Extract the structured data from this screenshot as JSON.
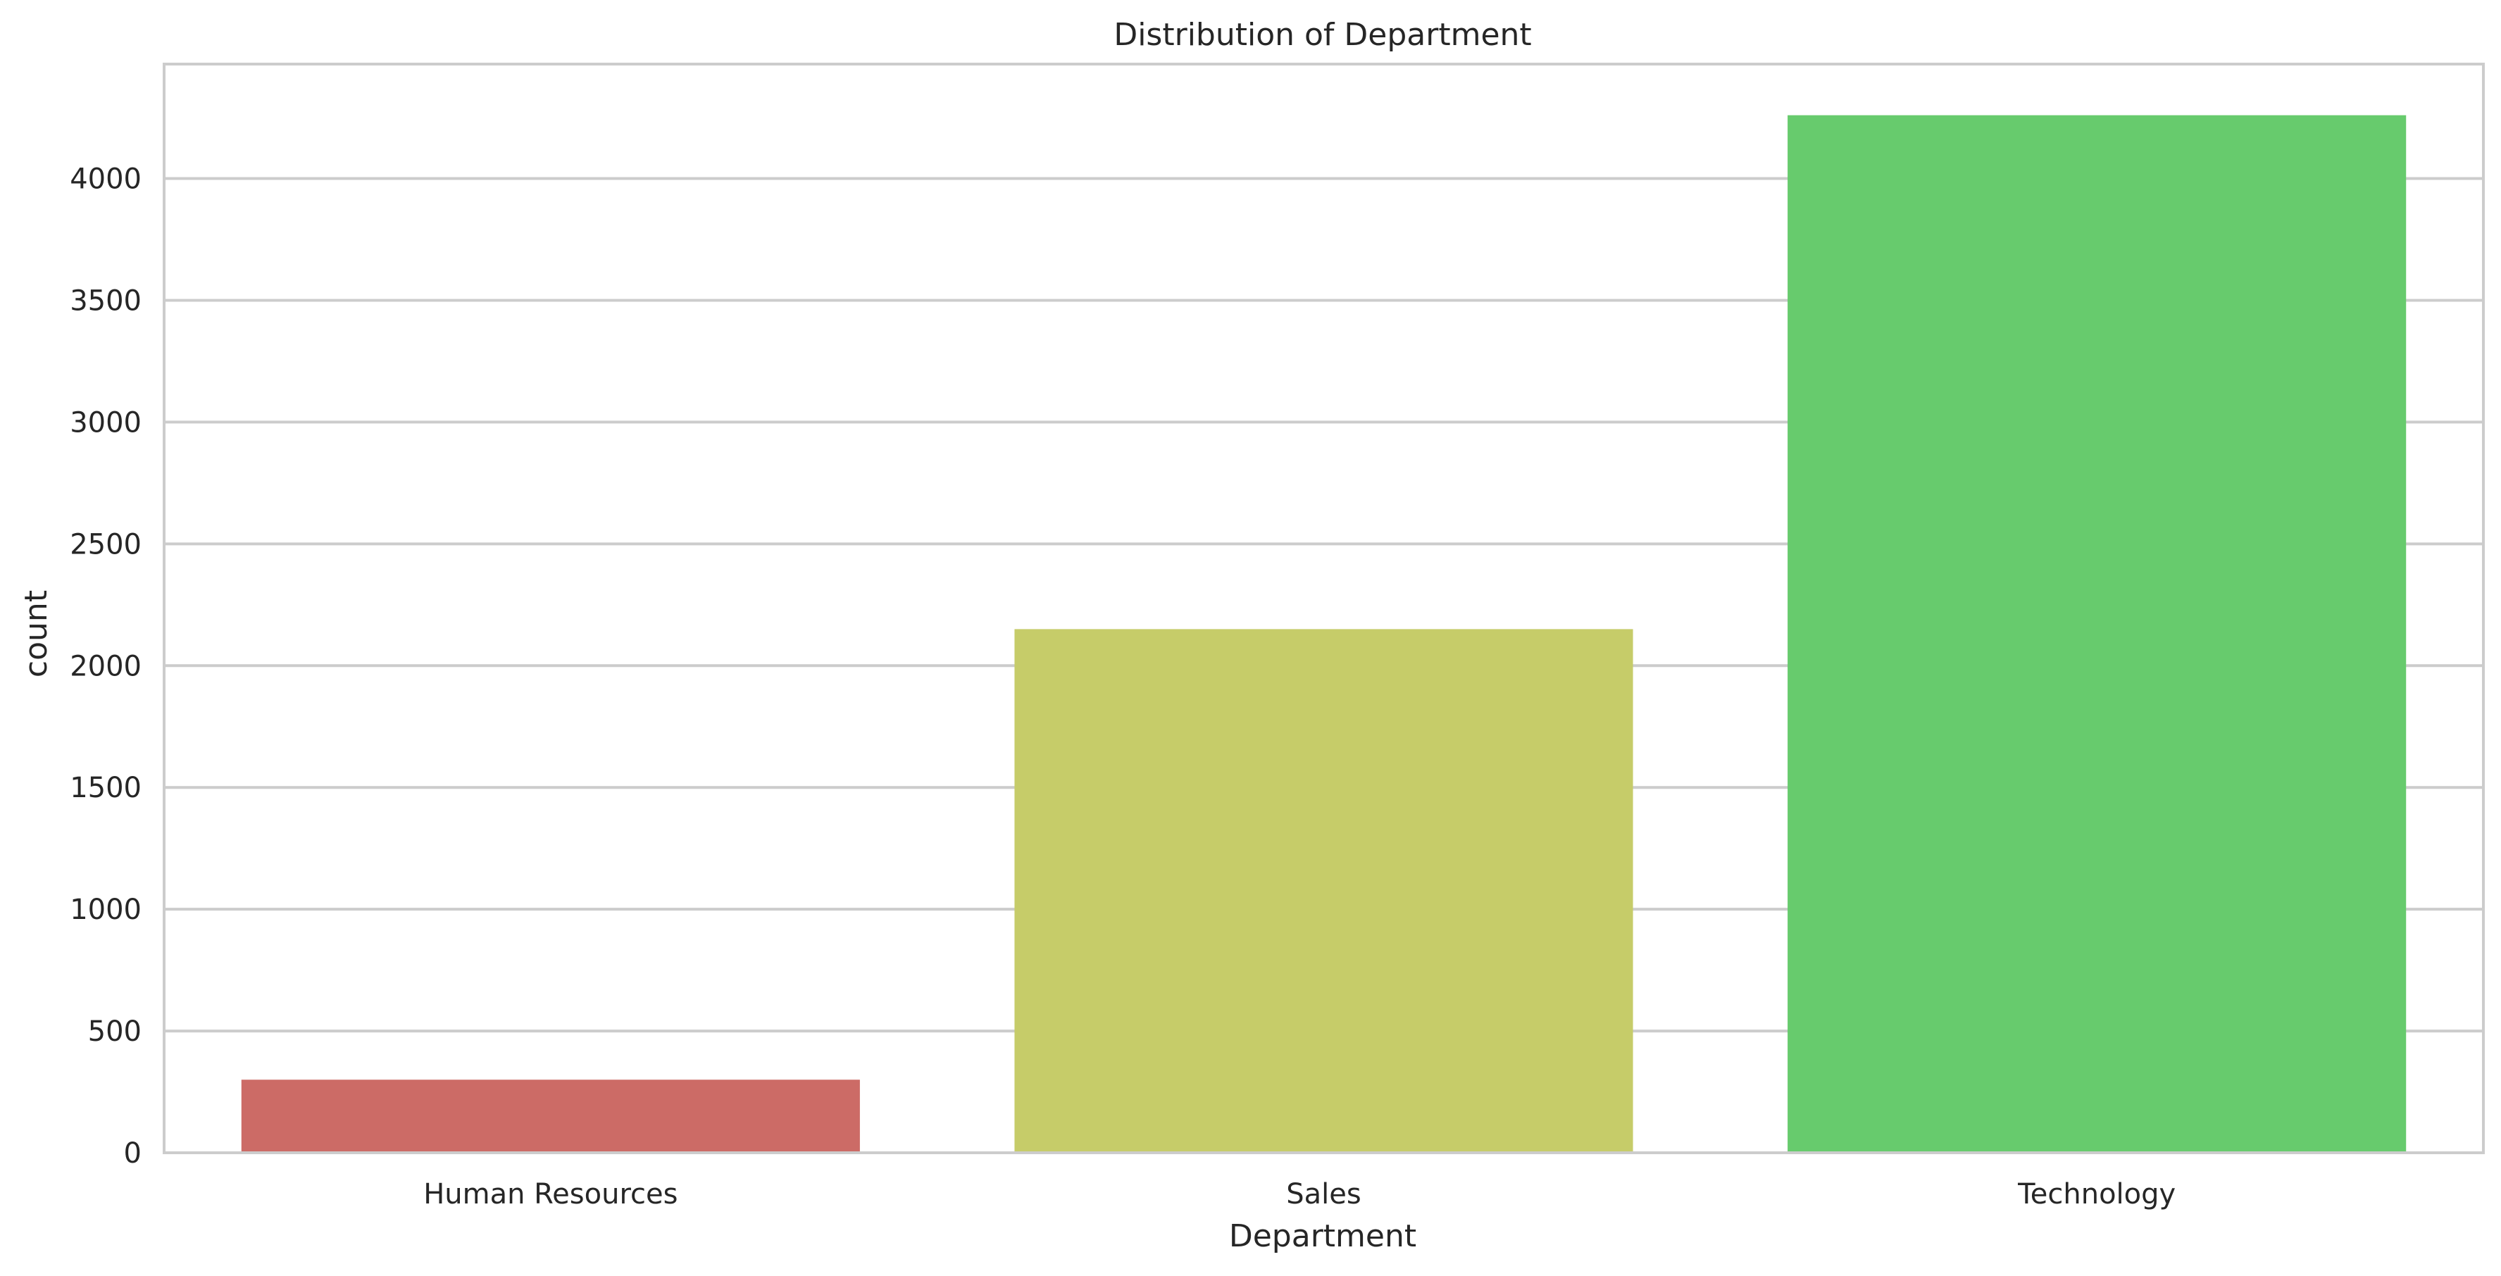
{
  "chart_data": {
    "type": "bar",
    "title": "Distribution of Department",
    "xlabel": "Department",
    "ylabel": "count",
    "categories": [
      "Human Resources",
      "Sales",
      "Technology"
    ],
    "values": [
      300,
      2150,
      4260
    ],
    "ylim": [
      0,
      4470
    ],
    "yticks": [
      0,
      500,
      1000,
      1500,
      2000,
      2500,
      3000,
      3500,
      4000
    ],
    "ytick_labels": [
      "0",
      "500",
      "1000",
      "1500",
      "2000",
      "2500",
      "3000",
      "3500",
      "4000"
    ],
    "grid": true,
    "legend": false,
    "colors": [
      "#cc6b66",
      "#c6cc69",
      "#67cb6d"
    ],
    "grid_color": "#cccccc",
    "frame_color": "#cccccc",
    "background": "#ffffff"
  }
}
